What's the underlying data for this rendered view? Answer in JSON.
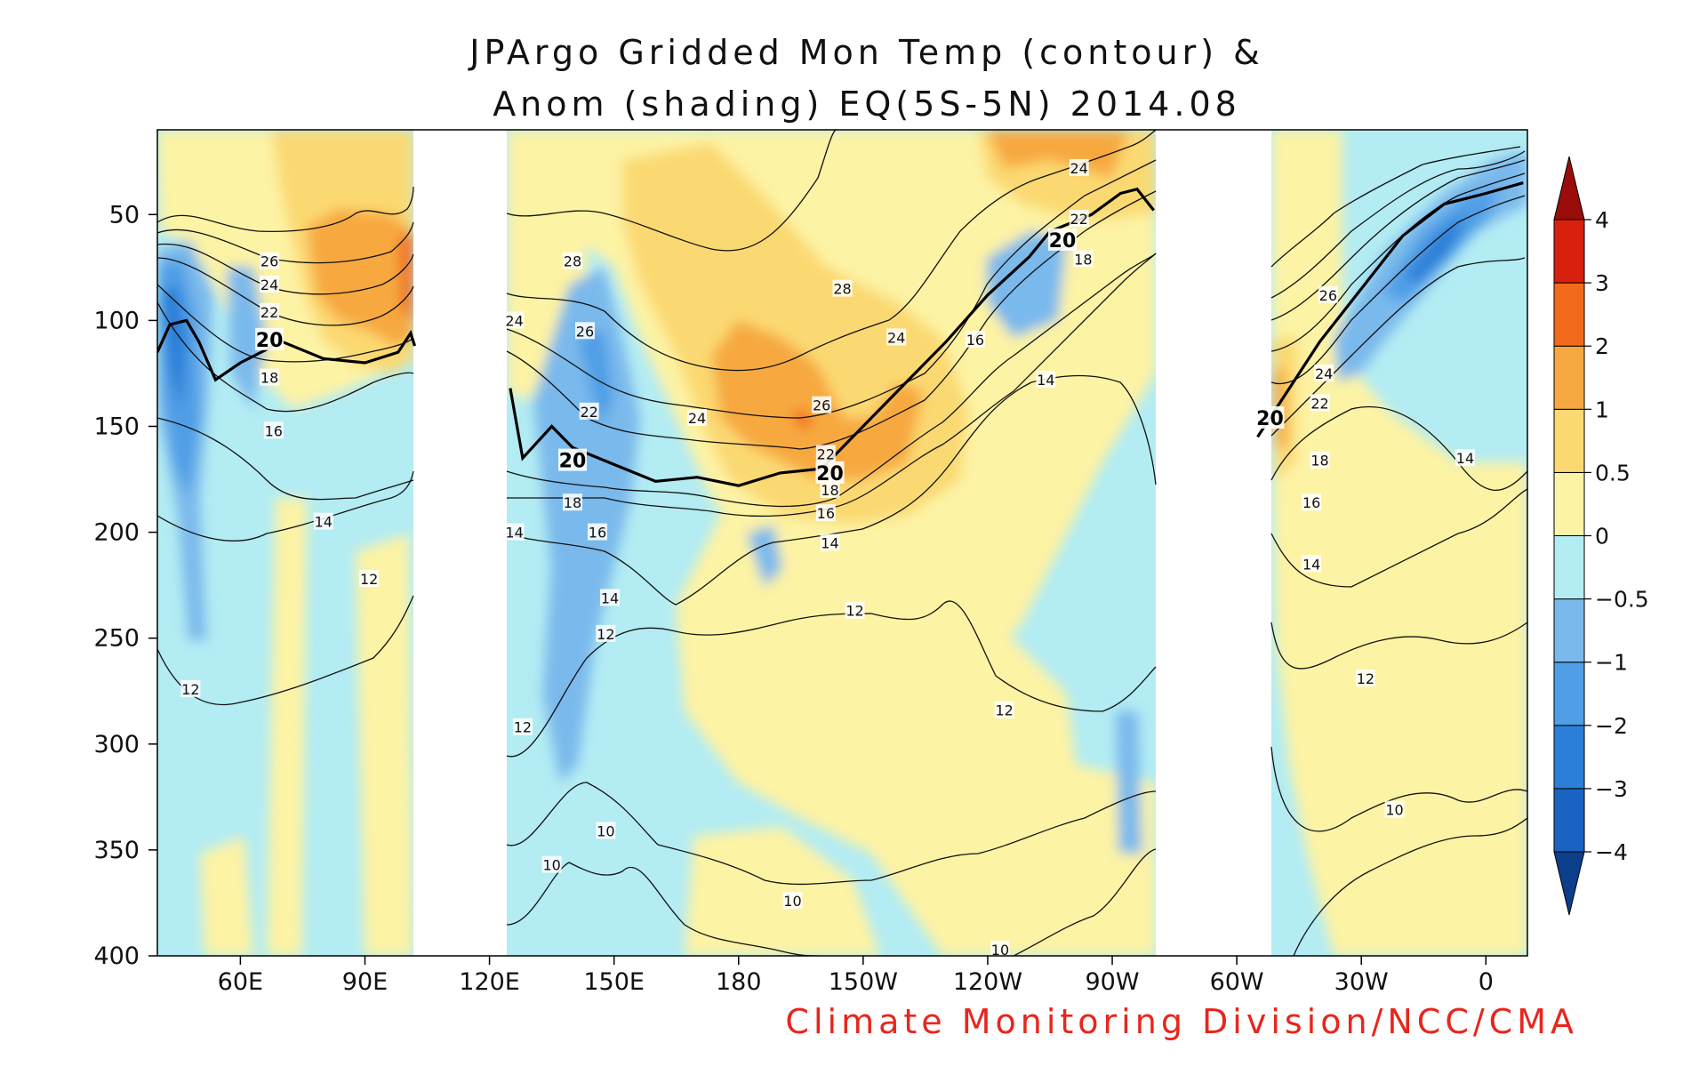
{
  "chart_data": {
    "type": "heatmap",
    "title_line1": "JPArgo Gridded Mon Temp (contour) &",
    "title_line2": "Anom (shading) EQ(5S-5N) 2014.08",
    "credit": "Climate Monitoring Division/NCC/CMA",
    "x_axis": {
      "ticks": [
        {
          "lon": 60,
          "label": "60E"
        },
        {
          "lon": 90,
          "label": "90E"
        },
        {
          "lon": 120,
          "label": "120E"
        },
        {
          "lon": 150,
          "label": "150E"
        },
        {
          "lon": 180,
          "label": "180"
        },
        {
          "lon": 210,
          "label": "150W"
        },
        {
          "lon": 240,
          "label": "120W"
        },
        {
          "lon": 270,
          "label": "90W"
        },
        {
          "lon": 300,
          "label": "60W"
        },
        {
          "lon": 330,
          "label": "30W"
        },
        {
          "lon": 360,
          "label": "0"
        }
      ],
      "range": [
        40,
        370
      ]
    },
    "y_axis": {
      "ticks": [
        50,
        100,
        150,
        200,
        250,
        300,
        350,
        400
      ],
      "range": [
        10,
        400
      ],
      "inverted": true
    },
    "colorbar": {
      "levels": [
        -4,
        -3,
        -2,
        -1,
        -0.5,
        0,
        0.5,
        1,
        2,
        3,
        4
      ],
      "labels": [
        "−4",
        "−3",
        "−2",
        "−1",
        "−0.5",
        "0",
        "0.5",
        "1",
        "2",
        "3",
        "4"
      ],
      "colors": [
        "#0b3f8c",
        "#1a63c2",
        "#2b7fd8",
        "#4f9ee6",
        "#7ab9ec",
        "#b3ecf3",
        "#fdf3a4",
        "#fbd972",
        "#f7a941",
        "#f26b1d",
        "#d8200f",
        "#9a0d0a"
      ]
    },
    "land_gaps_lon": [
      [
        102,
        125
      ],
      [
        280,
        305
      ]
    ],
    "depth_20C": [
      {
        "lon": 40,
        "d": 115
      },
      {
        "lon": 43,
        "d": 102
      },
      {
        "lon": 47,
        "d": 100
      },
      {
        "lon": 50,
        "d": 110
      },
      {
        "lon": 54,
        "d": 128
      },
      {
        "lon": 60,
        "d": 120
      },
      {
        "lon": 70,
        "d": 110
      },
      {
        "lon": 80,
        "d": 118
      },
      {
        "lon": 90,
        "d": 120
      },
      {
        "lon": 98,
        "d": 115
      },
      {
        "lon": 101,
        "d": 106
      },
      {
        "lon": 102,
        "d": 112
      },
      {
        "lon": 125,
        "d": 132
      },
      {
        "lon": 128,
        "d": 165
      },
      {
        "lon": 135,
        "d": 150
      },
      {
        "lon": 140,
        "d": 160
      },
      {
        "lon": 150,
        "d": 168
      },
      {
        "lon": 160,
        "d": 176
      },
      {
        "lon": 170,
        "d": 174
      },
      {
        "lon": 180,
        "d": 178
      },
      {
        "lon": 190,
        "d": 172
      },
      {
        "lon": 200,
        "d": 170
      },
      {
        "lon": 210,
        "d": 150
      },
      {
        "lon": 220,
        "d": 130
      },
      {
        "lon": 230,
        "d": 110
      },
      {
        "lon": 240,
        "d": 88
      },
      {
        "lon": 250,
        "d": 70
      },
      {
        "lon": 255,
        "d": 58
      },
      {
        "lon": 265,
        "d": 50
      },
      {
        "lon": 272,
        "d": 40
      },
      {
        "lon": 276,
        "d": 38
      },
      {
        "lon": 280,
        "d": 48
      },
      {
        "lon": 305,
        "d": 155
      },
      {
        "lon": 310,
        "d": 140
      },
      {
        "lon": 320,
        "d": 110
      },
      {
        "lon": 330,
        "d": 85
      },
      {
        "lon": 340,
        "d": 60
      },
      {
        "lon": 350,
        "d": 45
      },
      {
        "lon": 360,
        "d": 40
      },
      {
        "lon": 369,
        "d": 35
      }
    ],
    "contour_labels": [
      {
        "text": "28",
        "lon": 140,
        "d": 72
      },
      {
        "text": "28",
        "lon": 205,
        "d": 85
      },
      {
        "text": "26",
        "lon": 67,
        "d": 72
      },
      {
        "text": "26",
        "lon": 143,
        "d": 105
      },
      {
        "text": "26",
        "lon": 200,
        "d": 140
      },
      {
        "text": "26",
        "lon": 322,
        "d": 88
      },
      {
        "text": "24",
        "lon": 67,
        "d": 83
      },
      {
        "text": "24",
        "lon": 126,
        "d": 100
      },
      {
        "text": "24",
        "lon": 170,
        "d": 146
      },
      {
        "text": "24",
        "lon": 218,
        "d": 108
      },
      {
        "text": "24",
        "lon": 262,
        "d": 28
      },
      {
        "text": "24",
        "lon": 321,
        "d": 125
      },
      {
        "text": "22",
        "lon": 67,
        "d": 96
      },
      {
        "text": "22",
        "lon": 144,
        "d": 143
      },
      {
        "text": "22",
        "lon": 201,
        "d": 163
      },
      {
        "text": "22",
        "lon": 262,
        "d": 52
      },
      {
        "text": "22",
        "lon": 320,
        "d": 139
      },
      {
        "text": "18",
        "lon": 67,
        "d": 127
      },
      {
        "text": "18",
        "lon": 140,
        "d": 186
      },
      {
        "text": "18",
        "lon": 202,
        "d": 180
      },
      {
        "text": "18",
        "lon": 263,
        "d": 71
      },
      {
        "text": "18",
        "lon": 320,
        "d": 166
      },
      {
        "text": "16",
        "lon": 68,
        "d": 152
      },
      {
        "text": "16",
        "lon": 146,
        "d": 200
      },
      {
        "text": "16",
        "lon": 201,
        "d": 191
      },
      {
        "text": "16",
        "lon": 237,
        "d": 109
      },
      {
        "text": "16",
        "lon": 318,
        "d": 186
      },
      {
        "text": "14",
        "lon": 80,
        "d": 195
      },
      {
        "text": "14",
        "lon": 126,
        "d": 200
      },
      {
        "text": "14",
        "lon": 149,
        "d": 231
      },
      {
        "text": "14",
        "lon": 202,
        "d": 205
      },
      {
        "text": "14",
        "lon": 254,
        "d": 128
      },
      {
        "text": "14",
        "lon": 318,
        "d": 215
      },
      {
        "text": "14",
        "lon": 355,
        "d": 165
      },
      {
        "text": "12",
        "lon": 91,
        "d": 222
      },
      {
        "text": "12",
        "lon": 148,
        "d": 248
      },
      {
        "text": "12",
        "lon": 208,
        "d": 237
      },
      {
        "text": "12",
        "lon": 48,
        "d": 274
      },
      {
        "text": "12",
        "lon": 128,
        "d": 292
      },
      {
        "text": "12",
        "lon": 244,
        "d": 284
      },
      {
        "text": "12",
        "lon": 331,
        "d": 269
      },
      {
        "text": "10",
        "lon": 148,
        "d": 341
      },
      {
        "text": "10",
        "lon": 135,
        "d": 357
      },
      {
        "text": "10",
        "lon": 193,
        "d": 374
      },
      {
        "text": "10",
        "lon": 243,
        "d": 397
      },
      {
        "text": "10",
        "lon": 338,
        "d": 331
      }
    ],
    "contour_20_labels": [
      {
        "text": "20",
        "lon": 67,
        "d": 109
      },
      {
        "text": "20",
        "lon": 140,
        "d": 166
      },
      {
        "text": "20",
        "lon": 202,
        "d": 172
      },
      {
        "text": "20",
        "lon": 258,
        "d": 62
      },
      {
        "text": "20",
        "lon": 308,
        "d": 146
      }
    ]
  }
}
